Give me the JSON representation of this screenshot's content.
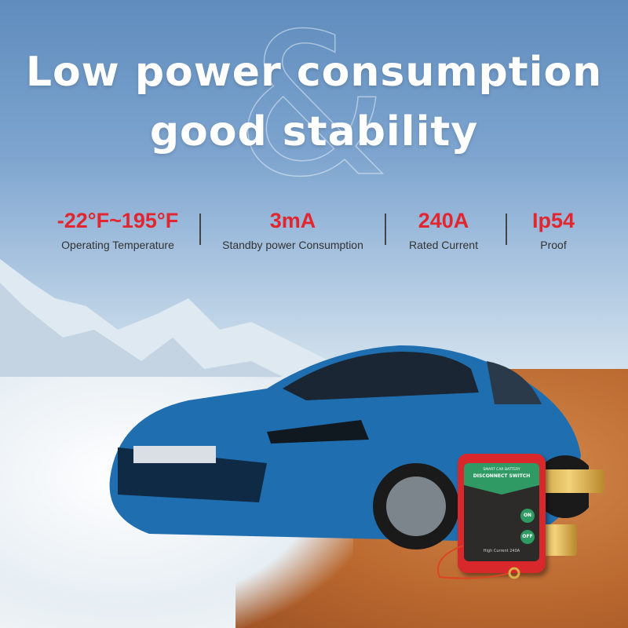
{
  "headline": {
    "line1": "Low power consumption",
    "line2": "good stability",
    "decor": "&"
  },
  "specs": [
    {
      "value": "-22°F~195°F",
      "label": "Operating Temperature"
    },
    {
      "value": "3mA",
      "label": "Standby power Consumption"
    },
    {
      "value": "240A",
      "label": "Rated Current"
    },
    {
      "value": "Ip54",
      "label": "Proof"
    }
  ],
  "device": {
    "brand": "SMART CAR BATTERY",
    "name": "DISCONNECT SWITCH",
    "on": "ON",
    "off": "OFF",
    "footer": "High Current 240A"
  },
  "colors": {
    "accent": "#e1262f",
    "device_green": "#2f9a64",
    "device_red": "#d8282b"
  }
}
